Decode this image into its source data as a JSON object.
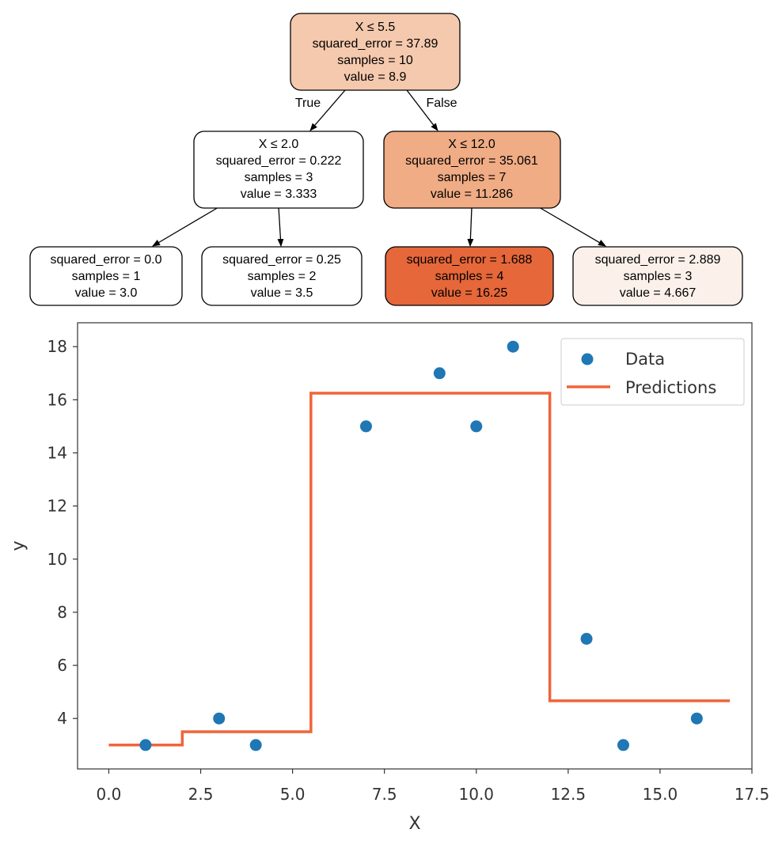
{
  "tree": {
    "nodes": [
      {
        "id": "root",
        "lines": [
          "X ≤ 5.5",
          "squared_error = 37.89",
          "samples = 10",
          "value = 8.9"
        ],
        "fill": "#f4c9ad",
        "value": 8.9
      },
      {
        "id": "left",
        "lines": [
          "X ≤ 2.0",
          "squared_error = 0.222",
          "samples = 3",
          "value = 3.333"
        ],
        "fill": "#ffffff",
        "value": 3.333
      },
      {
        "id": "right",
        "lines": [
          "X ≤ 12.0",
          "squared_error = 35.061",
          "samples = 7",
          "value = 11.286"
        ],
        "fill": "#f0ac84",
        "value": 11.286
      },
      {
        "id": "ll",
        "lines": [
          "squared_error = 0.0",
          "samples = 1",
          "value = 3.0"
        ],
        "fill": "#ffffff",
        "value": 3.0
      },
      {
        "id": "lr",
        "lines": [
          "squared_error = 0.25",
          "samples = 2",
          "value = 3.5"
        ],
        "fill": "#ffffff",
        "value": 3.5
      },
      {
        "id": "rl",
        "lines": [
          "squared_error = 1.688",
          "samples = 4",
          "value = 16.25"
        ],
        "fill": "#e5673a",
        "value": 16.25
      },
      {
        "id": "rr",
        "lines": [
          "squared_error = 2.889",
          "samples = 3",
          "value = 4.667"
        ],
        "fill": "#fbf1ea",
        "value": 4.667
      }
    ],
    "edge_labels": {
      "true": "True",
      "false": "False"
    }
  },
  "chart_data": {
    "type": "scatter",
    "title": "",
    "xlabel": "X",
    "ylabel": "y",
    "xlim": [
      -0.85,
      17.5
    ],
    "ylim": [
      2.1,
      18.9
    ],
    "xticks": [
      0.0,
      2.5,
      5.0,
      7.5,
      10.0,
      12.5,
      15.0,
      17.5
    ],
    "xtick_labels": [
      "0.0",
      "2.5",
      "5.0",
      "7.5",
      "10.0",
      "12.5",
      "15.0",
      "17.5"
    ],
    "yticks": [
      4,
      6,
      8,
      10,
      12,
      14,
      16,
      18
    ],
    "ytick_labels": [
      "4",
      "6",
      "8",
      "10",
      "12",
      "14",
      "16",
      "18"
    ],
    "grid": false,
    "legend": {
      "position": "top-right",
      "entries": [
        "Data",
        "Predictions"
      ]
    },
    "series": [
      {
        "name": "Data",
        "kind": "scatter",
        "color": "#1f77b4",
        "x": [
          1,
          3,
          4,
          7,
          9,
          10,
          11,
          13,
          14,
          16
        ],
        "y": [
          3,
          4,
          3,
          15,
          17,
          15,
          18,
          7,
          3,
          4
        ]
      },
      {
        "name": "Predictions",
        "kind": "step-line",
        "color": "#f0643a",
        "x": [
          0.0,
          2.0,
          2.0,
          5.5,
          5.5,
          12.0,
          12.0,
          16.9
        ],
        "y": [
          3.0,
          3.0,
          3.5,
          3.5,
          16.25,
          16.25,
          4.667,
          4.667
        ]
      }
    ]
  }
}
